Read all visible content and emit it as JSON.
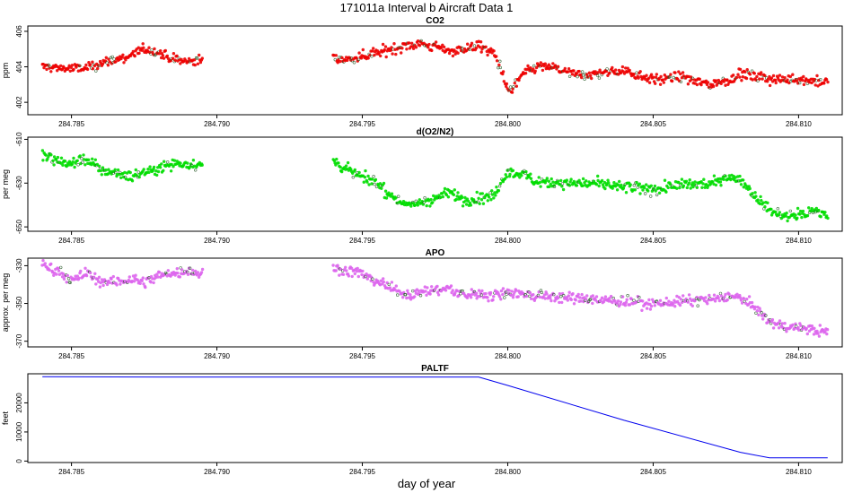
{
  "page": {
    "title": "171011a   Interval b Aircraft Data 1",
    "xlabel": "day of year"
  },
  "chart_data": [
    {
      "type": "scatter",
      "title": "CO2",
      "ylabel": "ppm",
      "color": "#ee0000",
      "xlim": [
        284.7835,
        284.8115
      ],
      "ylim": [
        401.3,
        406.3
      ],
      "yticks": [
        402,
        404,
        406
      ],
      "xticks": [
        284.785,
        284.79,
        284.795,
        284.8,
        284.805,
        284.81
      ],
      "xtick_labels": [
        "284.785",
        "284.790",
        "284.795",
        "284.800",
        "284.805",
        "284.810"
      ],
      "segments": [
        {
          "x": [
            284.784,
            284.785,
            284.7855,
            284.786,
            284.7865,
            284.787,
            284.7875,
            284.788,
            284.7885,
            284.789,
            284.7895
          ],
          "y": [
            404.0,
            403.9,
            403.9,
            404.2,
            404.4,
            404.6,
            405.0,
            404.8,
            404.4,
            404.3,
            404.4
          ]
        },
        {
          "x": [
            284.794,
            284.7945,
            284.795,
            284.7955,
            284.796,
            284.7965,
            284.797,
            284.7975,
            284.798,
            284.7985,
            284.799,
            284.7995,
            284.7998,
            284.8,
            284.8002,
            284.8005,
            284.801,
            284.8015,
            284.802,
            284.8025,
            284.803,
            284.804,
            284.805,
            284.806,
            284.807,
            284.8075,
            284.808,
            284.809,
            284.81,
            284.811
          ],
          "y": [
            404.5,
            404.4,
            404.6,
            404.8,
            405.0,
            405.2,
            405.3,
            405.1,
            404.9,
            405.0,
            405.2,
            404.8,
            403.8,
            402.6,
            402.8,
            403.6,
            404.0,
            404.0,
            403.7,
            403.5,
            403.6,
            403.8,
            403.3,
            403.4,
            403.0,
            403.2,
            403.6,
            403.3,
            403.3,
            403.1
          ]
        }
      ]
    },
    {
      "type": "scatter",
      "title": "d(O2/N2)",
      "ylabel": "per meg",
      "color": "#00dd00",
      "xlim": [
        284.7835,
        284.8115
      ],
      "ylim": [
        -652,
        -609
      ],
      "yticks": [
        -610,
        -630,
        -650
      ],
      "xticks": [
        284.785,
        284.79,
        284.795,
        284.8,
        284.805,
        284.81
      ],
      "xtick_labels": [
        "284.785",
        "284.790",
        "284.795",
        "284.800",
        "284.805",
        "284.810"
      ],
      "segments": [
        {
          "x": [
            284.784,
            284.7845,
            284.785,
            284.7855,
            284.786,
            284.7865,
            284.787,
            284.7875,
            284.788,
            284.7885,
            284.789,
            284.7895
          ],
          "y": [
            -617,
            -620,
            -621,
            -619,
            -624,
            -625,
            -627,
            -625,
            -623,
            -621,
            -621,
            -622
          ]
        },
        {
          "x": [
            284.794,
            284.7945,
            284.795,
            284.7955,
            284.796,
            284.7965,
            284.797,
            284.7975,
            284.798,
            284.7985,
            284.799,
            284.7995,
            284.8,
            284.8005,
            284.801,
            284.802,
            284.803,
            284.804,
            284.805,
            284.806,
            284.807,
            284.8075,
            284.808,
            284.8085,
            284.809,
            284.8095,
            284.81,
            284.8105,
            284.811
          ],
          "y": [
            -620,
            -624,
            -627,
            -630,
            -636,
            -640,
            -639,
            -637,
            -634,
            -638,
            -637,
            -636,
            -625,
            -626,
            -629,
            -630,
            -630,
            -632,
            -633,
            -631,
            -630,
            -627,
            -628,
            -636,
            -642,
            -645,
            -644,
            -643,
            -644
          ]
        }
      ]
    },
    {
      "type": "scatter",
      "title": "APO",
      "ylabel": "approx. per meg",
      "color": "#dd66ee",
      "xlim": [
        284.7835,
        284.8115
      ],
      "ylim": [
        -373,
        -326
      ],
      "yticks": [
        -330,
        -350,
        -370
      ],
      "xticks": [
        284.785,
        284.79,
        284.795,
        284.8,
        284.805,
        284.81
      ],
      "xtick_labels": [
        "284.785",
        "284.790",
        "284.795",
        "284.800",
        "284.805",
        "284.810"
      ],
      "segments": [
        {
          "x": [
            284.784,
            284.7845,
            284.785,
            284.7855,
            284.786,
            284.7865,
            284.787,
            284.7875,
            284.788,
            284.7885,
            284.789,
            284.7895
          ],
          "y": [
            -330,
            -332,
            -338,
            -334,
            -338,
            -339,
            -337,
            -339,
            -335,
            -334,
            -333,
            -334
          ]
        },
        {
          "x": [
            284.794,
            284.7945,
            284.795,
            284.7955,
            284.796,
            284.7965,
            284.797,
            284.7975,
            284.798,
            284.7985,
            284.799,
            284.7995,
            284.8,
            284.801,
            284.802,
            284.803,
            284.804,
            284.805,
            284.806,
            284.807,
            284.8075,
            284.808,
            284.8085,
            284.809,
            284.8095,
            284.81,
            284.8105,
            284.811
          ],
          "y": [
            -331,
            -333,
            -334,
            -338,
            -342,
            -345,
            -344,
            -343,
            -342,
            -346,
            -345,
            -346,
            -344,
            -346,
            -347,
            -348,
            -349,
            -350,
            -349,
            -348,
            -346,
            -347,
            -352,
            -360,
            -362,
            -363,
            -364,
            -365
          ]
        }
      ]
    },
    {
      "type": "line",
      "title": "PALTF",
      "ylabel": "feet",
      "color": "#0000ee",
      "xlim": [
        284.7835,
        284.8115
      ],
      "ylim": [
        -500,
        30000
      ],
      "yticks": [
        0,
        10000,
        20000
      ],
      "ytick_labels": [
        "0",
        "10000",
        "20000"
      ],
      "xticks": [
        284.785,
        284.79,
        284.795,
        284.8,
        284.805,
        284.81
      ],
      "xtick_labels": [
        "284.785",
        "284.790",
        "284.795",
        "284.800",
        "284.805",
        "284.810"
      ],
      "x": [
        284.784,
        284.788,
        284.792,
        284.796,
        284.799,
        284.8,
        284.804,
        284.808,
        284.809,
        284.81,
        284.811
      ],
      "y": [
        29000,
        28900,
        28900,
        28900,
        28900,
        26000,
        14000,
        3000,
        1100,
        1100,
        1100
      ]
    }
  ]
}
